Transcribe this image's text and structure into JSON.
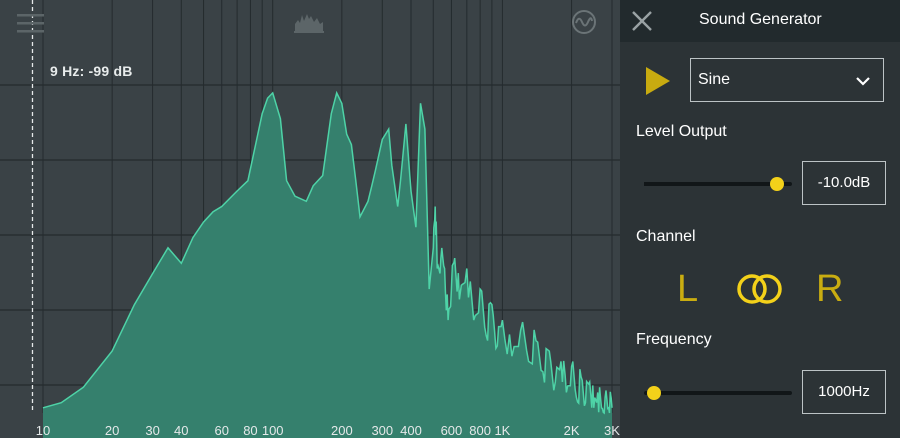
{
  "analyzer": {
    "cursor_readout": "9 Hz: -99 dB",
    "x_tick_labels": [
      "10",
      "20",
      "30",
      "40",
      "60",
      "80",
      "100",
      "200",
      "300",
      "400",
      "600",
      "800",
      "1K",
      "2K",
      "3K"
    ],
    "x_tick_values": [
      10,
      20,
      30,
      40,
      60,
      80,
      100,
      200,
      300,
      400,
      600,
      800,
      1000,
      2000,
      3000
    ],
    "cursor_hz": 9,
    "colors": {
      "background": "#3a4246",
      "fill": "#35806d",
      "line": "#4ed3a7",
      "grid": "#242b2e"
    },
    "icons": {
      "menu": "menu-icon",
      "spectrum": "spectrum-icon",
      "waveform": "waveform-icon"
    }
  },
  "chart_data": {
    "type": "area",
    "x_scale": "log",
    "xlim": [
      10,
      3000
    ],
    "x_ticks": [
      10,
      20,
      30,
      40,
      60,
      80,
      100,
      200,
      300,
      400,
      600,
      800,
      1000,
      2000,
      3000
    ],
    "x": [
      10,
      12,
      15,
      20,
      25,
      30,
      35,
      40,
      45,
      50,
      55,
      60,
      70,
      78,
      90,
      95,
      100,
      108,
      115,
      125,
      140,
      150,
      165,
      180,
      190,
      200,
      210,
      220,
      230,
      240,
      260,
      270,
      280,
      300,
      320,
      330,
      350,
      360,
      380,
      400,
      420,
      440,
      460,
      480,
      500,
      510,
      520,
      540,
      560,
      580,
      600,
      620,
      650,
      700,
      750,
      800,
      850,
      900,
      950,
      1000,
      1100,
      1200,
      1300,
      1400,
      1500,
      1600,
      1700,
      1800,
      1900,
      2000,
      2100,
      2200,
      2300,
      2400,
      2500,
      2600,
      2700,
      2800,
      2900,
      3000
    ],
    "y": [
      -99,
      -98,
      -95,
      -88,
      -79,
      -73,
      -68,
      -71,
      -66,
      -63,
      -61,
      -60,
      -57,
      -55,
      -42,
      -39,
      -38,
      -43,
      -55,
      -58,
      -59,
      -56,
      -54,
      -42,
      -38,
      -40,
      -46,
      -48,
      -55,
      -62,
      -59,
      -56,
      -53,
      -47,
      -45,
      -52,
      -60,
      -55,
      -44,
      -57,
      -64,
      -40,
      -45,
      -76,
      -68,
      -60,
      -72,
      -70,
      -72,
      -82,
      -76,
      -70,
      -78,
      -72,
      -82,
      -76,
      -85,
      -79,
      -87,
      -82,
      -89,
      -84,
      -90,
      -86,
      -92,
      -88,
      -94,
      -90,
      -96,
      -91,
      -97,
      -93,
      -98,
      -94,
      -99,
      -96,
      -99,
      -97,
      -99,
      -99
    ]
  },
  "panel": {
    "title": "Sound Generator",
    "waveform_select": "Sine",
    "level_label": "Level Output",
    "level_value": "-10.0dB",
    "level_fraction": 0.87,
    "channel_label": "Channel",
    "channel_left": "L",
    "channel_right": "R",
    "frequency_label": "Frequency",
    "frequency_value": "1000Hz",
    "frequency_fraction": 0.0,
    "accent": "#f3d11a",
    "icons": {
      "close": "close-icon",
      "play": "play-icon",
      "chevron": "chevron-down-icon",
      "stereo": "stereo-link-icon"
    }
  }
}
